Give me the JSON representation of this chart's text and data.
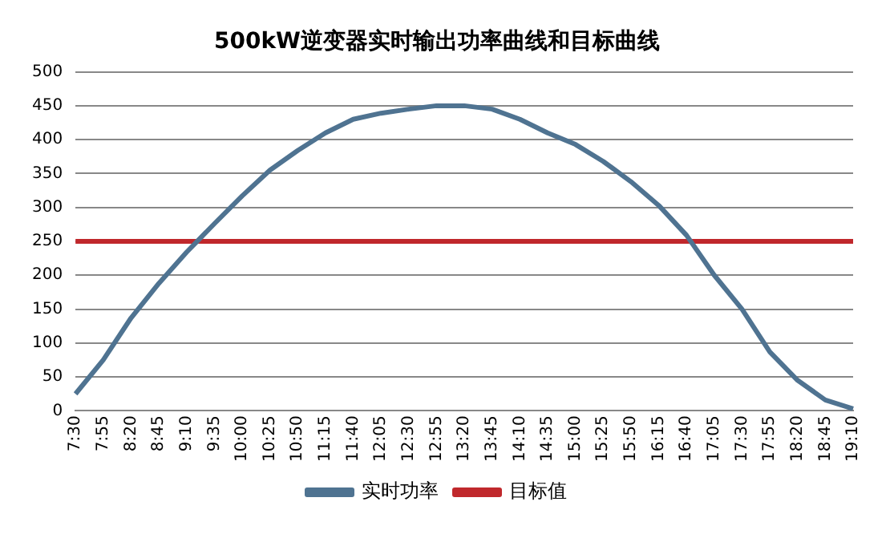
{
  "chart_data": {
    "type": "line",
    "title": "500kW逆变器实时输出功率曲线和目标曲线",
    "categories": [
      "7:30",
      "7:55",
      "8:20",
      "8:45",
      "9:10",
      "9:35",
      "10:00",
      "10:25",
      "10:50",
      "11:15",
      "11:40",
      "12:05",
      "12:30",
      "12:55",
      "13:20",
      "13:45",
      "14:10",
      "14:35",
      "15:00",
      "15:25",
      "15:50",
      "16:15",
      "16:40",
      "17:05",
      "17:30",
      "17:55",
      "18:20",
      "18:45",
      "19:10"
    ],
    "series": [
      {
        "name": "实时功率",
        "color": "#4f7391",
        "values": [
          25,
          75,
          137,
          188,
          234,
          276,
          317,
          355,
          384,
          410,
          430,
          439,
          445,
          450,
          450,
          445,
          430,
          410,
          393,
          368,
          338,
          303,
          259,
          200,
          150,
          87,
          45,
          16,
          3
        ]
      },
      {
        "name": "目标值",
        "color": "#c0282c",
        "values": [
          250,
          250,
          250,
          250,
          250,
          250,
          250,
          250,
          250,
          250,
          250,
          250,
          250,
          250,
          250,
          250,
          250,
          250,
          250,
          250,
          250,
          250,
          250,
          250,
          250,
          250,
          250,
          250,
          250
        ]
      }
    ],
    "ylim": [
      0,
      500
    ],
    "yticks": [
      0,
      50,
      100,
      150,
      200,
      250,
      300,
      350,
      400,
      450,
      500
    ],
    "grid": "y",
    "legend": "bottom",
    "marker": "none",
    "line_style": "solid"
  }
}
